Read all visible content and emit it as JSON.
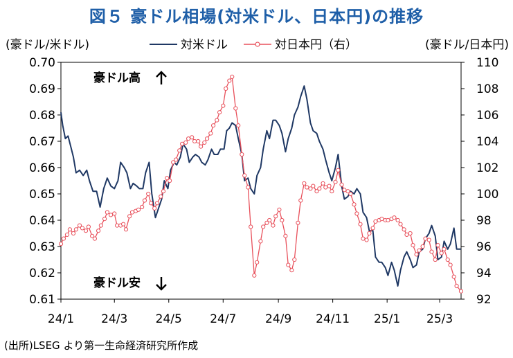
{
  "title": "図５ 豪ドル相場(対米ドル、日本円)の推移",
  "source": "(出所)LSEG より第一生命経済研究所作成",
  "colors": {
    "usd": "#1f3864",
    "jpy": "#e8505b",
    "title": "#1f5fa8"
  },
  "chart_data": {
    "type": "line",
    "title": "図５ 豪ドル相場(対米ドル、日本円)の推移",
    "left_axis": {
      "label": "(豪ドル/米ドル)",
      "range": [
        0.61,
        0.7
      ],
      "ticks": [
        "0.70",
        "0.69",
        "0.68",
        "0.67",
        "0.66",
        "0.65",
        "0.64",
        "0.63",
        "0.62",
        "0.61"
      ]
    },
    "right_axis": {
      "label": "(豪ドル/日本円)",
      "range": [
        92,
        110
      ],
      "ticks": [
        "110",
        "108",
        "106",
        "104",
        "102",
        "100",
        "98",
        "96",
        "94",
        "92"
      ]
    },
    "x_range": [
      "2024-01-01",
      "2025-03-25"
    ],
    "x_ticks": [
      {
        "label": "24/1",
        "date": "2024-01-01"
      },
      {
        "label": "24/3",
        "date": "2024-03-01"
      },
      {
        "label": "24/5",
        "date": "2024-05-01"
      },
      {
        "label": "24/7",
        "date": "2024-07-01"
      },
      {
        "label": "24/9",
        "date": "2024-09-01"
      },
      {
        "label": "24/11",
        "date": "2024-11-01"
      },
      {
        "label": "25/1",
        "date": "2025-01-01"
      },
      {
        "label": "25/3",
        "date": "2025-03-01"
      }
    ],
    "legend": {
      "placement": "top",
      "usd": "対米ドル",
      "jpy": "対日本円（右）"
    },
    "annotations": {
      "up": "豪ドル高",
      "down": "豪ドル安"
    },
    "grid": false,
    "series": [
      {
        "name": "対米ドル",
        "axis": "left",
        "points": [
          [
            "2024-01-01",
            0.681
          ],
          [
            "2024-01-03",
            0.676
          ],
          [
            "2024-01-06",
            0.671
          ],
          [
            "2024-01-09",
            0.672
          ],
          [
            "2024-01-12",
            0.668
          ],
          [
            "2024-01-15",
            0.664
          ],
          [
            "2024-01-18",
            0.658
          ],
          [
            "2024-01-22",
            0.659
          ],
          [
            "2024-01-26",
            0.657
          ],
          [
            "2024-01-30",
            0.659
          ],
          [
            "2024-02-02",
            0.655
          ],
          [
            "2024-02-06",
            0.651
          ],
          [
            "2024-02-10",
            0.651
          ],
          [
            "2024-02-14",
            0.645
          ],
          [
            "2024-02-18",
            0.652
          ],
          [
            "2024-02-22",
            0.656
          ],
          [
            "2024-02-26",
            0.653
          ],
          [
            "2024-03-01",
            0.652
          ],
          [
            "2024-03-05",
            0.655
          ],
          [
            "2024-03-08",
            0.662
          ],
          [
            "2024-03-12",
            0.66
          ],
          [
            "2024-03-15",
            0.658
          ],
          [
            "2024-03-19",
            0.652
          ],
          [
            "2024-03-22",
            0.654
          ],
          [
            "2024-03-26",
            0.653
          ],
          [
            "2024-03-29",
            0.652
          ],
          [
            "2024-04-02",
            0.652
          ],
          [
            "2024-04-05",
            0.658
          ],
          [
            "2024-04-09",
            0.662
          ],
          [
            "2024-04-12",
            0.65
          ],
          [
            "2024-04-16",
            0.641
          ],
          [
            "2024-04-19",
            0.644
          ],
          [
            "2024-04-23",
            0.648
          ],
          [
            "2024-04-26",
            0.655
          ],
          [
            "2024-04-30",
            0.652
          ],
          [
            "2024-05-03",
            0.659
          ],
          [
            "2024-05-07",
            0.662
          ],
          [
            "2024-05-10",
            0.661
          ],
          [
            "2024-05-14",
            0.664
          ],
          [
            "2024-05-17",
            0.669
          ],
          [
            "2024-05-21",
            0.667
          ],
          [
            "2024-05-24",
            0.662
          ],
          [
            "2024-05-28",
            0.664
          ],
          [
            "2024-05-31",
            0.665
          ],
          [
            "2024-06-04",
            0.664
          ],
          [
            "2024-06-07",
            0.662
          ],
          [
            "2024-06-11",
            0.661
          ],
          [
            "2024-06-14",
            0.663
          ],
          [
            "2024-06-18",
            0.667
          ],
          [
            "2024-06-21",
            0.665
          ],
          [
            "2024-06-25",
            0.665
          ],
          [
            "2024-06-28",
            0.667
          ],
          [
            "2024-07-02",
            0.667
          ],
          [
            "2024-07-05",
            0.674
          ],
          [
            "2024-07-08",
            0.675
          ],
          [
            "2024-07-11",
            0.677
          ],
          [
            "2024-07-15",
            0.676
          ],
          [
            "2024-07-18",
            0.671
          ],
          [
            "2024-07-22",
            0.665
          ],
          [
            "2024-07-25",
            0.655
          ],
          [
            "2024-07-29",
            0.656
          ],
          [
            "2024-08-01",
            0.652
          ],
          [
            "2024-08-05",
            0.65
          ],
          [
            "2024-08-08",
            0.657
          ],
          [
            "2024-08-12",
            0.66
          ],
          [
            "2024-08-15",
            0.667
          ],
          [
            "2024-08-19",
            0.674
          ],
          [
            "2024-08-22",
            0.671
          ],
          [
            "2024-08-26",
            0.678
          ],
          [
            "2024-08-29",
            0.678
          ],
          [
            "2024-09-02",
            0.676
          ],
          [
            "2024-09-05",
            0.673
          ],
          [
            "2024-09-09",
            0.666
          ],
          [
            "2024-09-12",
            0.671
          ],
          [
            "2024-09-16",
            0.675
          ],
          [
            "2024-09-19",
            0.68
          ],
          [
            "2024-09-23",
            0.683
          ],
          [
            "2024-09-26",
            0.687
          ],
          [
            "2024-09-30",
            0.691
          ],
          [
            "2024-10-03",
            0.686
          ],
          [
            "2024-10-07",
            0.677
          ],
          [
            "2024-10-10",
            0.674
          ],
          [
            "2024-10-14",
            0.673
          ],
          [
            "2024-10-17",
            0.67
          ],
          [
            "2024-10-21",
            0.667
          ],
          [
            "2024-10-24",
            0.663
          ],
          [
            "2024-10-28",
            0.658
          ],
          [
            "2024-10-31",
            0.655
          ],
          [
            "2024-11-04",
            0.66
          ],
          [
            "2024-11-07",
            0.665
          ],
          [
            "2024-11-11",
            0.653
          ],
          [
            "2024-11-14",
            0.648
          ],
          [
            "2024-11-18",
            0.649
          ],
          [
            "2024-11-21",
            0.651
          ],
          [
            "2024-11-25",
            0.65
          ],
          [
            "2024-11-28",
            0.652
          ],
          [
            "2024-12-02",
            0.65
          ],
          [
            "2024-12-05",
            0.643
          ],
          [
            "2024-12-09",
            0.641
          ],
          [
            "2024-12-12",
            0.636
          ],
          [
            "2024-12-16",
            0.636
          ],
          [
            "2024-12-19",
            0.626
          ],
          [
            "2024-12-23",
            0.624
          ],
          [
            "2024-12-26",
            0.624
          ],
          [
            "2024-12-30",
            0.622
          ],
          [
            "2025-01-02",
            0.619
          ],
          [
            "2025-01-06",
            0.624
          ],
          [
            "2025-01-09",
            0.621
          ],
          [
            "2025-01-13",
            0.615
          ],
          [
            "2025-01-16",
            0.621
          ],
          [
            "2025-01-20",
            0.626
          ],
          [
            "2025-01-23",
            0.628
          ],
          [
            "2025-01-27",
            0.625
          ],
          [
            "2025-01-30",
            0.622
          ],
          [
            "2025-02-03",
            0.623
          ],
          [
            "2025-02-06",
            0.628
          ],
          [
            "2025-02-10",
            0.629
          ],
          [
            "2025-02-13",
            0.633
          ],
          [
            "2025-02-17",
            0.635
          ],
          [
            "2025-02-20",
            0.638
          ],
          [
            "2025-02-24",
            0.634
          ],
          [
            "2025-02-27",
            0.625
          ],
          [
            "2025-03-03",
            0.626
          ],
          [
            "2025-03-06",
            0.632
          ],
          [
            "2025-03-10",
            0.629
          ],
          [
            "2025-03-13",
            0.631
          ],
          [
            "2025-03-17",
            0.637
          ],
          [
            "2025-03-20",
            0.629
          ],
          [
            "2025-03-25",
            0.629
          ]
        ]
      },
      {
        "name": "対日本円（右）",
        "axis": "right",
        "points": [
          [
            "2024-01-01",
            96.2
          ],
          [
            "2024-01-04",
            96.6
          ],
          [
            "2024-01-08",
            96.9
          ],
          [
            "2024-01-11",
            97.3
          ],
          [
            "2024-01-15",
            97.0
          ],
          [
            "2024-01-18",
            97.3
          ],
          [
            "2024-01-22",
            97.6
          ],
          [
            "2024-01-25",
            97.4
          ],
          [
            "2024-01-29",
            97.2
          ],
          [
            "2024-02-01",
            97.5
          ],
          [
            "2024-02-05",
            96.8
          ],
          [
            "2024-02-08",
            96.6
          ],
          [
            "2024-02-12",
            97.2
          ],
          [
            "2024-02-15",
            97.6
          ],
          [
            "2024-02-19",
            98.1
          ],
          [
            "2024-02-22",
            98.6
          ],
          [
            "2024-02-26",
            98.4
          ],
          [
            "2024-03-01",
            98.5
          ],
          [
            "2024-03-04",
            97.6
          ],
          [
            "2024-03-08",
            97.6
          ],
          [
            "2024-03-11",
            97.7
          ],
          [
            "2024-03-14",
            97.3
          ],
          [
            "2024-03-18",
            98.3
          ],
          [
            "2024-03-21",
            98.6
          ],
          [
            "2024-03-25",
            98.7
          ],
          [
            "2024-03-28",
            98.8
          ],
          [
            "2024-04-01",
            99.0
          ],
          [
            "2024-04-04",
            99.5
          ],
          [
            "2024-04-08",
            100.0
          ],
          [
            "2024-04-11",
            99.3
          ],
          [
            "2024-04-15",
            98.9
          ],
          [
            "2024-04-18",
            99.3
          ],
          [
            "2024-04-22",
            99.8
          ],
          [
            "2024-04-25",
            100.2
          ],
          [
            "2024-04-29",
            101.2
          ],
          [
            "2024-05-02",
            101.0
          ],
          [
            "2024-05-06",
            102.4
          ],
          [
            "2024-05-09",
            102.6
          ],
          [
            "2024-05-13",
            103.3
          ],
          [
            "2024-05-16",
            103.8
          ],
          [
            "2024-05-20",
            103.9
          ],
          [
            "2024-05-23",
            104.2
          ],
          [
            "2024-05-27",
            104.3
          ],
          [
            "2024-05-30",
            104.0
          ],
          [
            "2024-06-03",
            104.0
          ],
          [
            "2024-06-06",
            103.6
          ],
          [
            "2024-06-10",
            103.9
          ],
          [
            "2024-06-13",
            104.2
          ],
          [
            "2024-06-17",
            104.6
          ],
          [
            "2024-06-20",
            105.2
          ],
          [
            "2024-06-24",
            105.6
          ],
          [
            "2024-06-27",
            106.2
          ],
          [
            "2024-07-01",
            106.7
          ],
          [
            "2024-07-04",
            108.0
          ],
          [
            "2024-07-08",
            108.6
          ],
          [
            "2024-07-11",
            108.9
          ],
          [
            "2024-07-15",
            106.5
          ],
          [
            "2024-07-18",
            105.2
          ],
          [
            "2024-07-22",
            103.0
          ],
          [
            "2024-07-25",
            101.4
          ],
          [
            "2024-07-29",
            100.5
          ],
          [
            "2024-08-01",
            97.5
          ],
          [
            "2024-08-05",
            93.8
          ],
          [
            "2024-08-08",
            94.8
          ],
          [
            "2024-08-12",
            96.4
          ],
          [
            "2024-08-15",
            97.5
          ],
          [
            "2024-08-19",
            97.8
          ],
          [
            "2024-08-22",
            98.0
          ],
          [
            "2024-08-26",
            97.6
          ],
          [
            "2024-08-29",
            98.3
          ],
          [
            "2024-09-02",
            98.8
          ],
          [
            "2024-09-05",
            98.0
          ],
          [
            "2024-09-09",
            96.8
          ],
          [
            "2024-09-12",
            94.6
          ],
          [
            "2024-09-16",
            94.2
          ],
          [
            "2024-09-19",
            95.0
          ],
          [
            "2024-09-23",
            97.8
          ],
          [
            "2024-09-26",
            99.5
          ],
          [
            "2024-09-30",
            100.8
          ],
          [
            "2024-10-03",
            100.5
          ],
          [
            "2024-10-07",
            100.4
          ],
          [
            "2024-10-10",
            100.6
          ],
          [
            "2024-10-14",
            100.2
          ],
          [
            "2024-10-17",
            100.4
          ],
          [
            "2024-10-21",
            100.8
          ],
          [
            "2024-10-24",
            100.5
          ],
          [
            "2024-10-28",
            100.6
          ],
          [
            "2024-10-31",
            100.2
          ],
          [
            "2024-11-04",
            100.9
          ],
          [
            "2024-11-07",
            101.8
          ],
          [
            "2024-11-11",
            100.7
          ],
          [
            "2024-11-14",
            100.3
          ],
          [
            "2024-11-18",
            100.2
          ],
          [
            "2024-11-21",
            100.0
          ],
          [
            "2024-11-25",
            99.2
          ],
          [
            "2024-11-28",
            98.5
          ],
          [
            "2024-12-02",
            97.7
          ],
          [
            "2024-12-05",
            96.6
          ],
          [
            "2024-12-09",
            96.5
          ],
          [
            "2024-12-12",
            97.0
          ],
          [
            "2024-12-16",
            97.4
          ],
          [
            "2024-12-19",
            97.9
          ],
          [
            "2024-12-23",
            98.0
          ],
          [
            "2024-12-26",
            98.1
          ],
          [
            "2024-12-30",
            98.0
          ],
          [
            "2025-01-02",
            98.0
          ],
          [
            "2025-01-06",
            98.1
          ],
          [
            "2025-01-09",
            98.2
          ],
          [
            "2025-01-13",
            98.0
          ],
          [
            "2025-01-16",
            97.7
          ],
          [
            "2025-01-20",
            97.3
          ],
          [
            "2025-01-23",
            96.9
          ],
          [
            "2025-01-27",
            97.0
          ],
          [
            "2025-01-30",
            96.1
          ],
          [
            "2025-02-03",
            95.4
          ],
          [
            "2025-02-06",
            95.7
          ],
          [
            "2025-02-10",
            96.0
          ],
          [
            "2025-02-13",
            96.6
          ],
          [
            "2025-02-17",
            96.5
          ],
          [
            "2025-02-20",
            95.6
          ],
          [
            "2025-02-24",
            95.0
          ],
          [
            "2025-02-27",
            96.1
          ],
          [
            "2025-03-03",
            95.5
          ],
          [
            "2025-03-06",
            95.8
          ],
          [
            "2025-03-10",
            95.0
          ],
          [
            "2025-03-13",
            94.6
          ],
          [
            "2025-03-17",
            93.7
          ],
          [
            "2025-03-20",
            93.0
          ],
          [
            "2025-03-25",
            92.6
          ]
        ]
      }
    ]
  }
}
